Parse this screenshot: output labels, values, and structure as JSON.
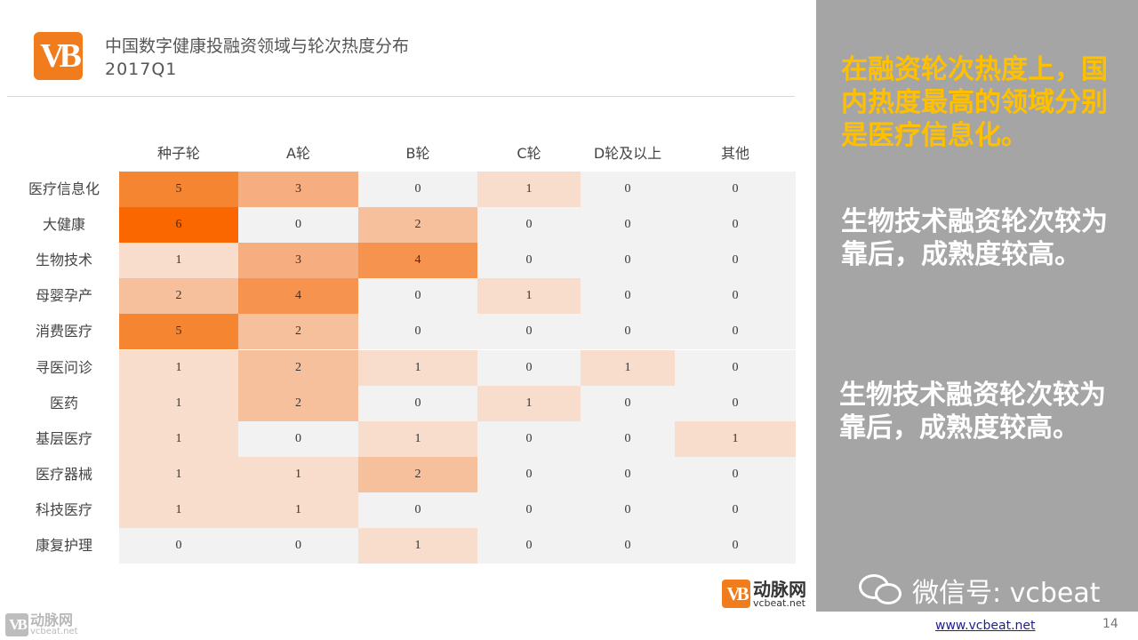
{
  "header": {
    "title": "中国数字健康投融资领域与轮次热度分布",
    "subtitle": "2017Q1",
    "logo_text": "VB"
  },
  "chart_data": {
    "type": "heatmap",
    "columns": [
      "种子轮",
      "A轮",
      "B轮",
      "C轮",
      "D轮及以上",
      "其他"
    ],
    "rows": [
      "医疗信息化",
      "大健康",
      "生物技术",
      "母婴孕产",
      "消费医疗",
      "寻医问诊",
      "医药",
      "基层医疗",
      "医疗器械",
      "科技医疗",
      "康复护理"
    ],
    "values": [
      [
        5,
        3,
        0,
        1,
        0,
        0
      ],
      [
        6,
        0,
        2,
        0,
        0,
        0
      ],
      [
        1,
        3,
        4,
        0,
        0,
        0
      ],
      [
        2,
        4,
        0,
        1,
        0,
        0
      ],
      [
        5,
        2,
        0,
        0,
        0,
        0
      ],
      [
        1,
        2,
        1,
        0,
        1,
        0
      ],
      [
        1,
        2,
        0,
        1,
        0,
        0
      ],
      [
        1,
        0,
        1,
        0,
        0,
        1
      ],
      [
        1,
        1,
        2,
        0,
        0,
        0
      ],
      [
        1,
        1,
        0,
        0,
        0,
        0
      ],
      [
        0,
        0,
        1,
        0,
        0,
        0
      ]
    ],
    "colors": {
      "0": "#f2f2f2",
      "1": "#f8dccc",
      "2": "#f7c09c",
      "3": "#f6ad80",
      "4": "#f6934f",
      "5": "#f58531",
      "6": "#fa6600"
    }
  },
  "side_panel": {
    "text1": "在融资轮次热度上，国内热度最高的领域分别是医疗信息化。",
    "text2": "生物技术融资轮次较为靠后，成熟度较高。",
    "text3": "生物技术融资轮次较为靠后，成熟度较高。",
    "wechat": "微信号: vcbeat"
  },
  "brand": {
    "logo_text": "VB",
    "name_cn": "动脉网",
    "name_en": "vcbeat.net"
  },
  "footer": {
    "link": "www.vcbeat.net",
    "page_number": "14"
  }
}
